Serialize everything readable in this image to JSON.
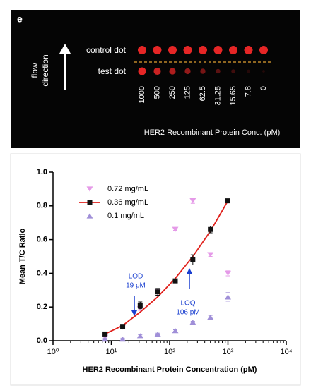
{
  "panel": "e",
  "photo": {
    "control_label": "control dot",
    "test_label": "test dot",
    "flow_label": [
      "flow",
      "direction"
    ],
    "concentrations": [
      "1000",
      "500",
      "250",
      "125",
      "62.5",
      "31.25",
      "15.65",
      "7.8",
      "0"
    ],
    "axis_label": "HER2  Recombinant Protein Conc. (pM)"
  },
  "chart_data": {
    "type": "scatter",
    "xlabel": "HER2 Recombinant Protein Concentration (pM)",
    "ylabel": "Mean T/C Ratio",
    "x_log": true,
    "xlim": [
      1,
      10000
    ],
    "xticks": [
      {
        "value": 1,
        "label": "10⁰"
      },
      {
        "value": 10,
        "label": "10¹"
      },
      {
        "value": 100,
        "label": "10²"
      },
      {
        "value": 1000,
        "label": "10³"
      },
      {
        "value": 10000,
        "label": "10⁴"
      }
    ],
    "ylim": [
      0,
      1
    ],
    "yticks": [
      {
        "value": 0,
        "label": "0.0"
      },
      0.2,
      0.4,
      0.6,
      0.8,
      {
        "value": 1,
        "label": "1.0"
      }
    ],
    "x": [
      7.8,
      15.65,
      31.25,
      62.5,
      125,
      250,
      500,
      1000
    ],
    "series": [
      {
        "name": "0.72 mg/mL",
        "color": "#e59ae8",
        "marker": "triangle-down",
        "values": [
          0.02,
          0.08,
          0.19,
          0.29,
          0.66,
          0.83,
          0.51,
          0.4
        ],
        "errors": [
          0.01,
          0.005,
          0.01,
          0.01,
          0.005,
          0.015,
          0.01,
          0.015
        ]
      },
      {
        "name": "0.36 mg/mL",
        "color": "#111111",
        "marker": "square",
        "line_color": "#e0201b",
        "values": [
          0.04,
          0.085,
          0.21,
          0.29,
          0.355,
          0.48,
          0.66,
          0.83
        ],
        "errors": [
          0.01,
          0.01,
          0.02,
          0.02,
          0.01,
          0.03,
          0.02,
          0.005
        ],
        "fit_values": [
          0.04,
          0.09,
          0.17,
          0.26,
          0.37,
          0.5,
          0.65,
          0.83
        ]
      },
      {
        "name": "0.1 mg/mL",
        "color": "#a08fd8",
        "marker": "triangle-up",
        "values": [
          0.01,
          0.01,
          0.03,
          0.04,
          0.06,
          0.11,
          0.14,
          0.26
        ],
        "errors": [
          0.005,
          0.005,
          0.005,
          0.005,
          0.005,
          0.005,
          0.01,
          0.025
        ]
      }
    ],
    "annotations": [
      {
        "lines": [
          "LOD",
          "19 pM"
        ],
        "color": "#1a3fd0"
      },
      {
        "lines": [
          "LOQ",
          "106 pM"
        ],
        "color": "#1a3fd0"
      }
    ]
  }
}
